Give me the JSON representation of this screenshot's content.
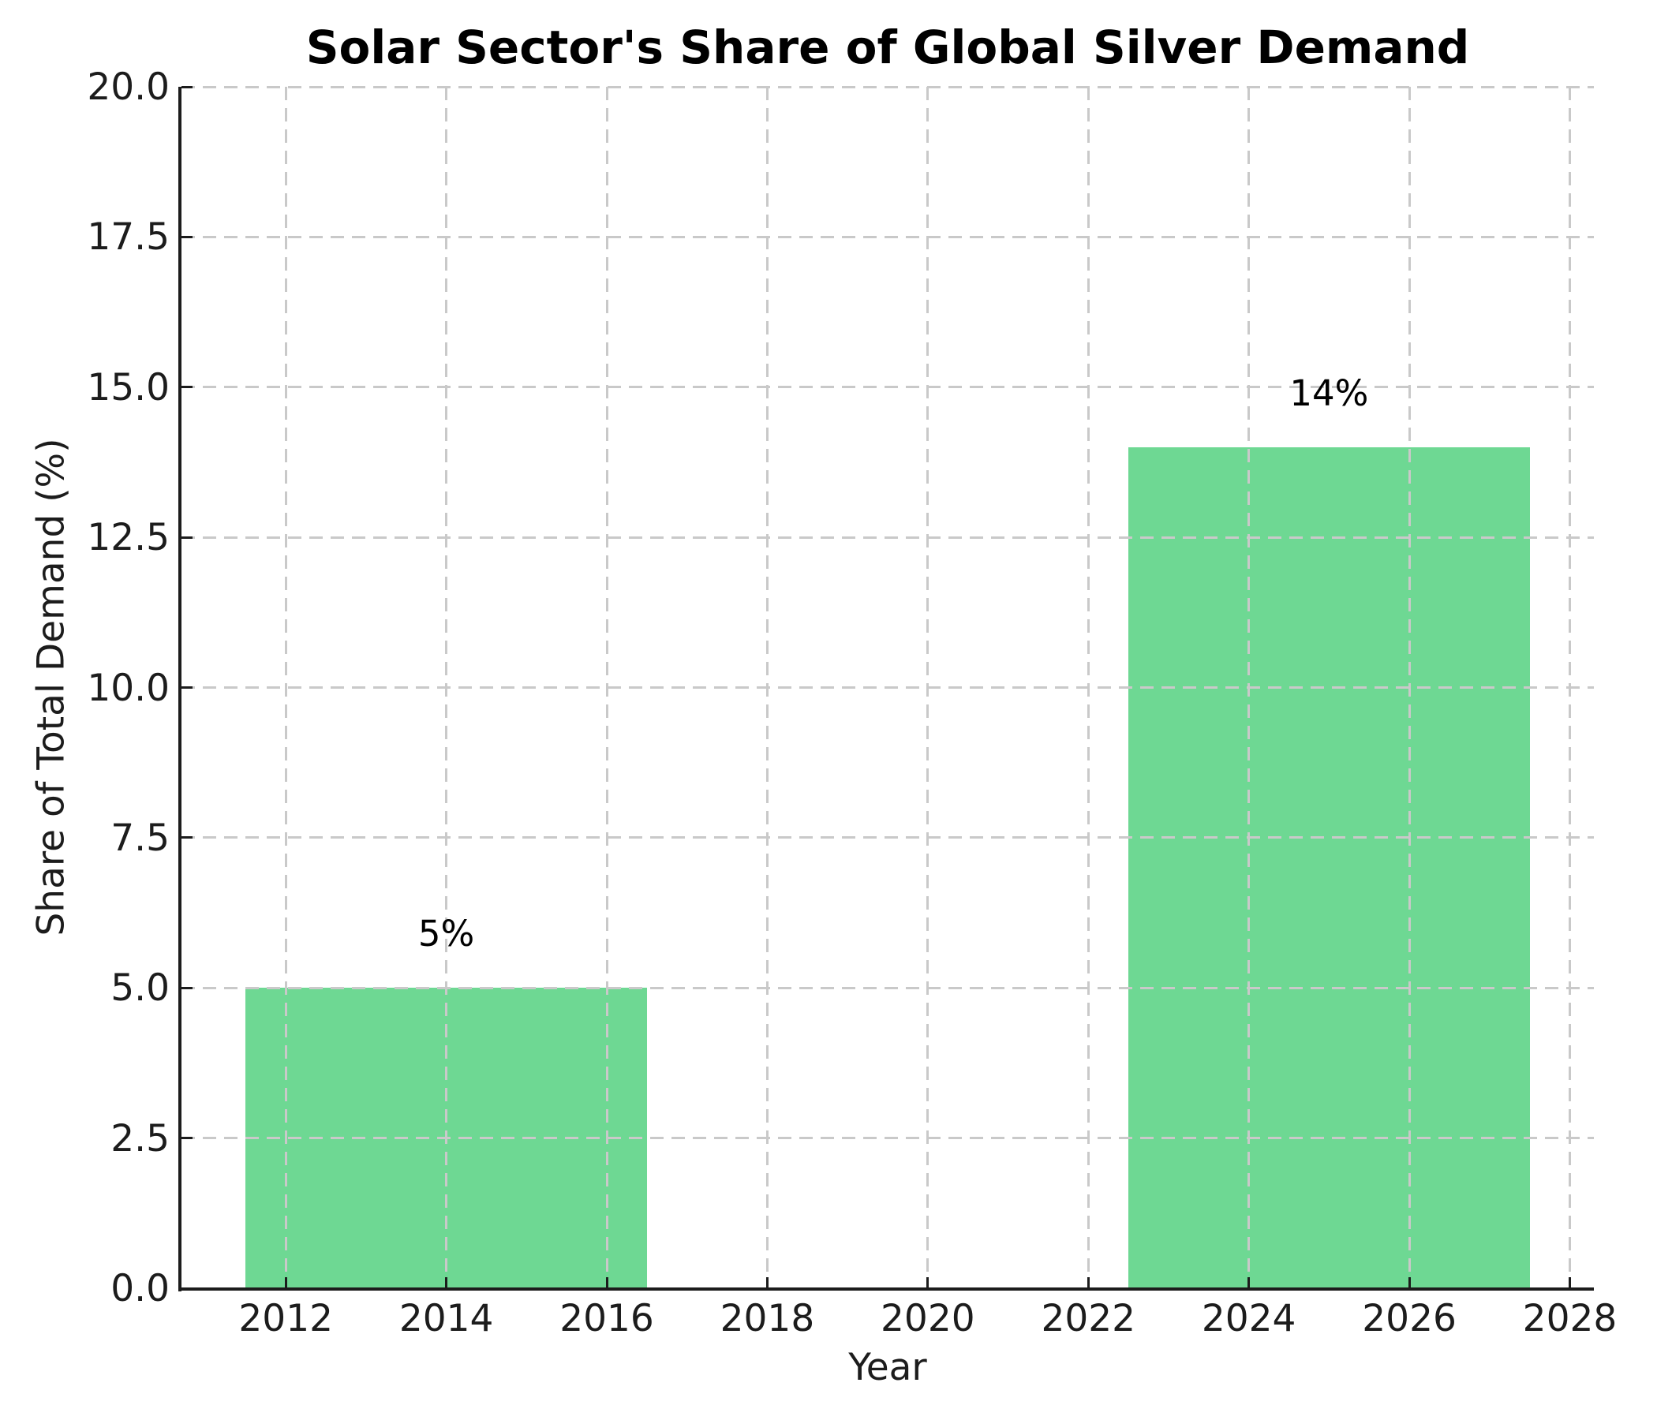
{
  "chart_data": {
    "type": "bar",
    "title": "Solar Sector's Share of Global Silver Demand",
    "xlabel": "Year",
    "ylabel": "Share of Total Demand (%)",
    "x": [
      2014,
      2025
    ],
    "values": [
      5,
      14
    ],
    "bar_labels": [
      "5%",
      "14%"
    ],
    "bar_width_years": 5,
    "xticks": [
      2012,
      2014,
      2016,
      2018,
      2020,
      2022,
      2024,
      2026,
      2028
    ],
    "xtick_labels": [
      "2012",
      "2014",
      "2016",
      "2018",
      "2020",
      "2022",
      "2024",
      "2026",
      "2028"
    ],
    "yticks": [
      0.0,
      2.5,
      5.0,
      7.5,
      10.0,
      12.5,
      15.0,
      17.5,
      20.0
    ],
    "ytick_labels": [
      "0.0",
      "2.5",
      "5.0",
      "7.5",
      "10.0",
      "12.5",
      "15.0",
      "17.5",
      "20.0"
    ],
    "xlim": [
      2010.7,
      2028.3
    ],
    "ylim": [
      0,
      20
    ],
    "grid": true,
    "grid_style": "dashed",
    "legend": false,
    "colors": {
      "bar": "#6ed893",
      "grid": "#c9c9c9",
      "axis": "#1c1c1c",
      "text": "#1c1c1c",
      "title": "#000000",
      "background": "#ffffff"
    }
  }
}
